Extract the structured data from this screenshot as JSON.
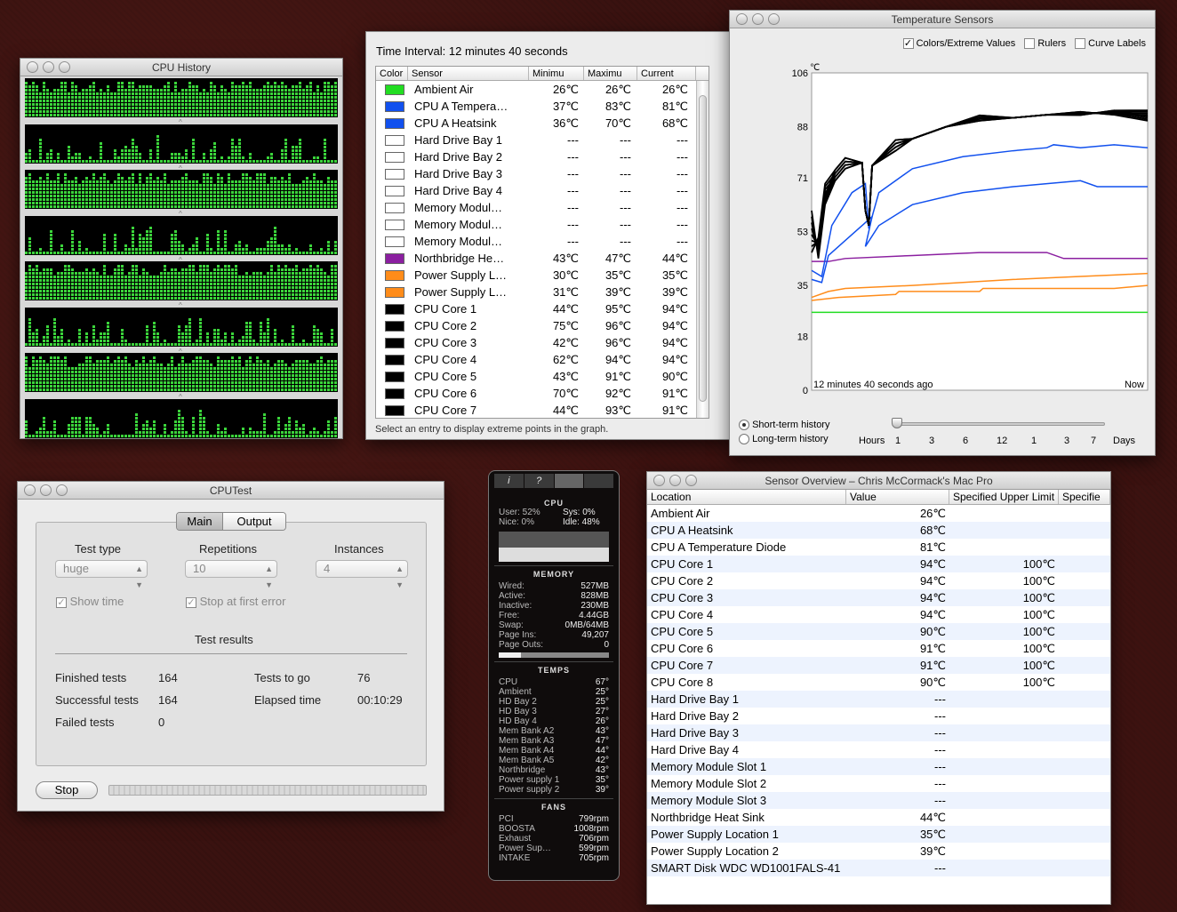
{
  "cpu_history": {
    "title": "CPU History"
  },
  "sensors": {
    "interval_label": "Time Interval: 12 minutes 40 seconds",
    "headers": [
      "Color",
      "Sensor",
      "Minimu",
      "Maximu",
      "Current"
    ],
    "status": "Select an entry to display extreme points in the graph.",
    "rows": [
      {
        "color": "#22dd22",
        "name": "Ambient Air",
        "min": "26℃",
        "max": "26℃",
        "cur": "26℃"
      },
      {
        "color": "#1150ee",
        "name": "CPU A Tempera…",
        "min": "37℃",
        "max": "83℃",
        "cur": "81℃"
      },
      {
        "color": "#1150ee",
        "name": "CPU A Heatsink",
        "min": "36℃",
        "max": "70℃",
        "cur": "68℃"
      },
      {
        "color": "#ffffff",
        "name": "Hard Drive Bay 1",
        "min": "---",
        "max": "---",
        "cur": "---"
      },
      {
        "color": "#ffffff",
        "name": "Hard Drive Bay 2",
        "min": "---",
        "max": "---",
        "cur": "---"
      },
      {
        "color": "#ffffff",
        "name": "Hard Drive Bay 3",
        "min": "---",
        "max": "---",
        "cur": "---"
      },
      {
        "color": "#ffffff",
        "name": "Hard Drive Bay 4",
        "min": "---",
        "max": "---",
        "cur": "---"
      },
      {
        "color": "#ffffff",
        "name": "Memory Modul…",
        "min": "---",
        "max": "---",
        "cur": "---"
      },
      {
        "color": "#ffffff",
        "name": "Memory Modul…",
        "min": "---",
        "max": "---",
        "cur": "---"
      },
      {
        "color": "#ffffff",
        "name": "Memory Modul…",
        "min": "---",
        "max": "---",
        "cur": "---"
      },
      {
        "color": "#8b1fa0",
        "name": "Northbridge He…",
        "min": "43℃",
        "max": "47℃",
        "cur": "44℃"
      },
      {
        "color": "#ff8c1a",
        "name": "Power Supply L…",
        "min": "30℃",
        "max": "35℃",
        "cur": "35℃"
      },
      {
        "color": "#ff8c1a",
        "name": "Power Supply L…",
        "min": "31℃",
        "max": "39℃",
        "cur": "39℃"
      },
      {
        "color": "#000000",
        "name": "CPU Core 1",
        "min": "44℃",
        "max": "95℃",
        "cur": "94℃"
      },
      {
        "color": "#000000",
        "name": "CPU Core 2",
        "min": "75℃",
        "max": "96℃",
        "cur": "94℃"
      },
      {
        "color": "#000000",
        "name": "CPU Core 3",
        "min": "42℃",
        "max": "96℃",
        "cur": "94℃"
      },
      {
        "color": "#000000",
        "name": "CPU Core 4",
        "min": "62℃",
        "max": "94℃",
        "cur": "94℃"
      },
      {
        "color": "#000000",
        "name": "CPU Core 5",
        "min": "43℃",
        "max": "91℃",
        "cur": "90℃"
      },
      {
        "color": "#000000",
        "name": "CPU Core 6",
        "min": "70℃",
        "max": "92℃",
        "cur": "91℃"
      },
      {
        "color": "#000000",
        "name": "CPU Core 7",
        "min": "44℃",
        "max": "93℃",
        "cur": "91℃"
      }
    ]
  },
  "temp_graph": {
    "title": "Temperature Sensors",
    "opt_colors": "Colors/Extreme Values",
    "opt_rulers": "Rulers",
    "opt_labels": "Curve Labels",
    "unit": "℃",
    "yticks": [
      "106",
      "88",
      "71",
      "53",
      "35",
      "18",
      "0"
    ],
    "x_start": "12 minutes 40 seconds ago",
    "x_end": "Now",
    "short": "Short-term history",
    "long": "Long-term history",
    "hours": "Hours",
    "days": "Days",
    "hour_ticks": [
      "1",
      "3",
      "6",
      "12"
    ],
    "day_ticks": [
      "1",
      "3",
      "7"
    ]
  },
  "cputest": {
    "title": "CPUTest",
    "tab_main": "Main",
    "tab_output": "Output",
    "test_type_label": "Test type",
    "test_type": "huge",
    "rep_label": "Repetitions",
    "rep": "10",
    "inst_label": "Instances",
    "inst": "4",
    "show_time": "Show time",
    "stop_first": "Stop at first error",
    "results": "Test results",
    "finished_label": "Finished tests",
    "finished": "164",
    "successful_label": "Successful tests",
    "successful": "164",
    "failed_label": "Failed tests",
    "failed": "0",
    "togo_label": "Tests to go",
    "togo": "76",
    "elapsed_label": "Elapsed time",
    "elapsed": "00:10:29",
    "stop": "Stop"
  },
  "meter": {
    "tabs": [
      "i",
      "?",
      "",
      ""
    ],
    "cpu": {
      "title": "CPU",
      "user": "User: 52%",
      "sys": "Sys: 0%",
      "nice": "Nice: 0%",
      "idle": "Idle: 48%"
    },
    "memory": {
      "title": "MEMORY",
      "rows": [
        [
          "Wired:",
          "527MB"
        ],
        [
          "Active:",
          "828MB"
        ],
        [
          "Inactive:",
          "230MB"
        ],
        [
          "Free:",
          "4.44GB"
        ],
        [
          "Swap:",
          "0MB/64MB"
        ],
        [
          "Page Ins:",
          "49,207"
        ],
        [
          "Page Outs:",
          "0"
        ]
      ]
    },
    "temps": {
      "title": "TEMPS",
      "rows": [
        [
          "CPU",
          "67°"
        ],
        [
          "Ambient",
          "25°"
        ],
        [
          "HD Bay 2",
          "25°"
        ],
        [
          "HD Bay 3",
          "27°"
        ],
        [
          "HD Bay 4",
          "26°"
        ],
        [
          "Mem Bank A2",
          "43°"
        ],
        [
          "Mem Bank A3",
          "47°"
        ],
        [
          "Mem Bank A4",
          "44°"
        ],
        [
          "Mem Bank A5",
          "42°"
        ],
        [
          "Northbridge",
          "43°"
        ],
        [
          "Power supply 1",
          "35°"
        ],
        [
          "Power supply 2",
          "39°"
        ]
      ]
    },
    "fans": {
      "title": "FANS",
      "rows": [
        [
          "PCI",
          "799rpm"
        ],
        [
          "BOOSTA",
          "1008rpm"
        ],
        [
          "Exhaust",
          "706rpm"
        ],
        [
          "Power Sup…",
          "599rpm"
        ],
        [
          "INTAKE",
          "705rpm"
        ]
      ]
    }
  },
  "overview": {
    "title": "Sensor Overview – Chris McCormack's Mac Pro",
    "headers": [
      "Location",
      "Value",
      "Specified Upper Limit",
      "Specifie"
    ],
    "rows": [
      [
        "Ambient Air",
        "26℃",
        ""
      ],
      [
        "CPU A Heatsink",
        "68℃",
        ""
      ],
      [
        "CPU A Temperature Diode",
        "81℃",
        ""
      ],
      [
        "CPU Core 1",
        "94℃",
        "100℃"
      ],
      [
        "CPU Core 2",
        "94℃",
        "100℃"
      ],
      [
        "CPU Core 3",
        "94℃",
        "100℃"
      ],
      [
        "CPU Core 4",
        "94℃",
        "100℃"
      ],
      [
        "CPU Core 5",
        "90℃",
        "100℃"
      ],
      [
        "CPU Core 6",
        "91℃",
        "100℃"
      ],
      [
        "CPU Core 7",
        "91℃",
        "100℃"
      ],
      [
        "CPU Core 8",
        "90℃",
        "100℃"
      ],
      [
        "Hard Drive Bay 1",
        "---",
        ""
      ],
      [
        "Hard Drive Bay 2",
        "---",
        ""
      ],
      [
        "Hard Drive Bay 3",
        "---",
        ""
      ],
      [
        "Hard Drive Bay 4",
        "---",
        ""
      ],
      [
        "Memory Module Slot 1",
        "---",
        ""
      ],
      [
        "Memory Module Slot 2",
        "---",
        ""
      ],
      [
        "Memory Module Slot 3",
        "---",
        ""
      ],
      [
        "Northbridge Heat Sink",
        "44℃",
        ""
      ],
      [
        "Power Supply Location 1",
        "35℃",
        ""
      ],
      [
        "Power Supply Location 2",
        "39℃",
        ""
      ],
      [
        "SMART Disk WDC WD1001FALS-41",
        "---",
        ""
      ]
    ]
  }
}
